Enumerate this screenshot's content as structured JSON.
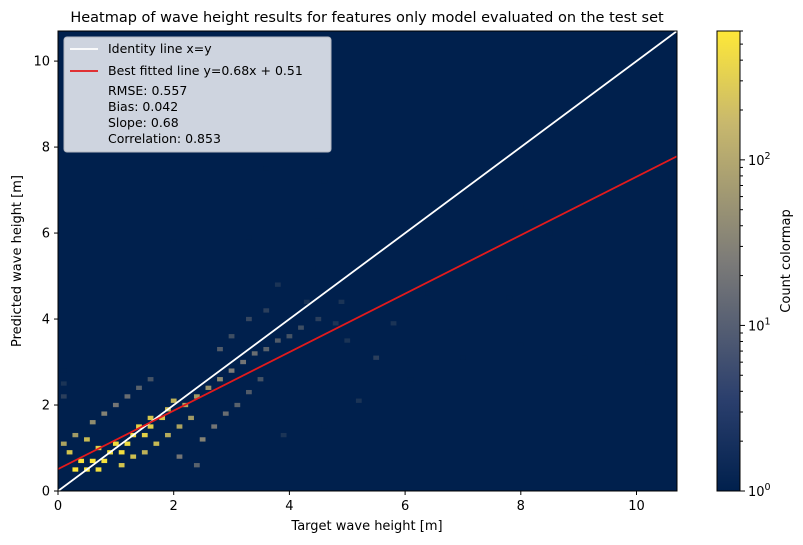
{
  "chart_data": {
    "type": "heatmap",
    "title": "Heatmap of wave height results for features only model evaluated on the test set",
    "xlabel": "Target wave height [m]",
    "ylabel": "Predicted wave height [m]",
    "xlim": [
      0,
      10.7
    ],
    "ylim": [
      0,
      10.7
    ],
    "x_ticks": [
      0,
      2,
      4,
      6,
      8,
      10
    ],
    "y_ticks": [
      0,
      2,
      4,
      6,
      8,
      10
    ],
    "colorbar": {
      "label": "Count colormap",
      "scale": "log",
      "range": [
        1,
        600
      ],
      "major_ticks": [
        {
          "value": 1,
          "base": "10",
          "exp": "0"
        },
        {
          "value": 10,
          "base": "10",
          "exp": "1"
        },
        {
          "value": 100,
          "base": "10",
          "exp": "2"
        }
      ],
      "colors": {
        "low": "#00204d",
        "mid": "#7c7b78",
        "high": "#fee838"
      }
    },
    "lines": [
      {
        "name": "Identity line x=y",
        "slope": 1,
        "intercept": 0,
        "color": "#ffffff"
      },
      {
        "name": "Best fitted line y=0.68x + 0.51",
        "slope": 0.68,
        "intercept": 0.51,
        "color": "#e31a1c"
      }
    ],
    "legend": {
      "position": "upper-left",
      "stats": [
        "RMSE: 0.557",
        "Bias: 0.042",
        "Slope: 0.68",
        "Correlation: 0.853"
      ]
    },
    "background_color": "#00204d",
    "bins": [
      0.1,
      0.1
    ],
    "cells": [
      [
        0.3,
        0.5,
        600
      ],
      [
        0.5,
        0.5,
        550
      ],
      [
        0.7,
        0.5,
        450
      ],
      [
        0.4,
        0.7,
        500
      ],
      [
        0.6,
        0.7,
        560
      ],
      [
        0.8,
        0.7,
        500
      ],
      [
        0.9,
        0.9,
        480
      ],
      [
        1.1,
        0.9,
        450
      ],
      [
        1.0,
        1.1,
        420
      ],
      [
        1.2,
        1.1,
        400
      ],
      [
        1.3,
        1.3,
        360
      ],
      [
        1.5,
        1.3,
        300
      ],
      [
        1.4,
        1.5,
        320
      ],
      [
        1.6,
        1.5,
        280
      ],
      [
        1.6,
        1.7,
        220
      ],
      [
        1.8,
        1.7,
        200
      ],
      [
        1.9,
        1.9,
        160
      ],
      [
        2.0,
        2.1,
        120
      ],
      [
        0.2,
        0.9,
        200
      ],
      [
        0.1,
        1.1,
        80
      ],
      [
        0.3,
        1.3,
        60
      ],
      [
        0.5,
        1.2,
        150
      ],
      [
        0.7,
        1.0,
        300
      ],
      [
        1.1,
        0.6,
        200
      ],
      [
        1.3,
        0.8,
        180
      ],
      [
        1.5,
        0.9,
        120
      ],
      [
        1.7,
        1.1,
        150
      ],
      [
        1.9,
        1.3,
        100
      ],
      [
        2.1,
        1.5,
        80
      ],
      [
        2.3,
        1.7,
        60
      ],
      [
        2.2,
        2.0,
        90
      ],
      [
        2.4,
        2.2,
        60
      ],
      [
        2.6,
        2.4,
        45
      ],
      [
        2.8,
        2.6,
        35
      ],
      [
        3.0,
        2.8,
        25
      ],
      [
        3.2,
        3.0,
        20
      ],
      [
        3.4,
        3.2,
        15
      ],
      [
        3.6,
        3.3,
        10
      ],
      [
        3.8,
        3.5,
        8
      ],
      [
        4.0,
        3.6,
        6
      ],
      [
        4.2,
        3.8,
        5
      ],
      [
        4.5,
        4.0,
        3
      ],
      [
        0.6,
        1.6,
        40
      ],
      [
        0.8,
        1.8,
        30
      ],
      [
        1.0,
        2.0,
        20
      ],
      [
        1.2,
        2.2,
        15
      ],
      [
        1.4,
        2.4,
        10
      ],
      [
        1.6,
        2.6,
        6
      ],
      [
        2.5,
        1.2,
        30
      ],
      [
        2.7,
        1.5,
        20
      ],
      [
        2.9,
        1.8,
        15
      ],
      [
        3.1,
        2.0,
        10
      ],
      [
        3.3,
        2.3,
        8
      ],
      [
        3.5,
        2.6,
        6
      ],
      [
        2.8,
        3.3,
        8
      ],
      [
        3.0,
        3.6,
        5
      ],
      [
        3.3,
        4.0,
        4
      ],
      [
        3.6,
        4.2,
        3
      ],
      [
        4.3,
        4.4,
        2
      ],
      [
        4.8,
        3.9,
        2
      ],
      [
        0.1,
        2.2,
        3
      ],
      [
        0.1,
        2.5,
        2
      ],
      [
        0.1,
        2.8,
        1
      ],
      [
        3.9,
        1.3,
        2
      ],
      [
        4.6,
        1.5,
        1
      ],
      [
        5.2,
        2.1,
        2
      ],
      [
        5.5,
        3.1,
        3
      ],
      [
        6.1,
        2.6,
        1
      ],
      [
        7.0,
        3.1,
        1
      ],
      [
        7.8,
        4.5,
        1
      ],
      [
        8.0,
        3.4,
        1
      ],
      [
        9.1,
        3.1,
        1
      ],
      [
        10.2,
        3.0,
        1
      ],
      [
        10.6,
        7.3,
        1
      ],
      [
        6.8,
        3.7,
        1
      ],
      [
        6.4,
        4.6,
        1
      ],
      [
        5.8,
        3.9,
        2
      ],
      [
        5.0,
        3.5,
        2
      ],
      [
        4.9,
        4.4,
        2
      ],
      [
        3.3,
        5.9,
        1
      ],
      [
        3.6,
        7.5,
        1
      ],
      [
        4.4,
        5.2,
        1
      ],
      [
        4.5,
        6.3,
        1
      ],
      [
        2.0,
        5.8,
        1
      ],
      [
        4.6,
        7.2,
        1
      ],
      [
        8.1,
        6.6,
        1
      ],
      [
        8.5,
        6.0,
        1
      ],
      [
        3.8,
        4.8,
        2
      ],
      [
        2.4,
        0.6,
        10
      ],
      [
        2.1,
        0.8,
        20
      ]
    ]
  }
}
